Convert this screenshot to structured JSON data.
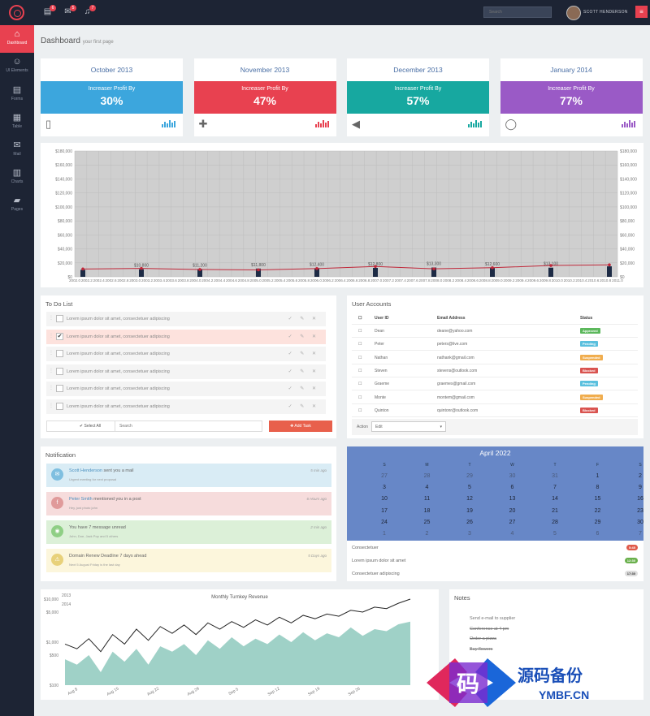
{
  "topbar": {
    "search_placeholder": "Search",
    "username": "SCOTT HENDERSON",
    "badges": [
      "6",
      "5",
      "7"
    ],
    "menu_glyph": "≡"
  },
  "sidebar": [
    {
      "label": "Dashboard",
      "icon": "home-icon",
      "glyph": "⌂",
      "active": true
    },
    {
      "label": "UI Elements",
      "icon": "smiley-icon",
      "glyph": "☺",
      "active": false
    },
    {
      "label": "Forms",
      "icon": "form-icon",
      "glyph": "▤",
      "active": false
    },
    {
      "label": "Table",
      "icon": "table-icon",
      "glyph": "▦",
      "active": false
    },
    {
      "label": "Mail",
      "icon": "mail-icon",
      "glyph": "✉",
      "active": false
    },
    {
      "label": "Charts",
      "icon": "chart-icon",
      "glyph": "▥",
      "active": false
    },
    {
      "label": "Pages",
      "icon": "folder-icon",
      "glyph": "▰",
      "active": false
    }
  ],
  "page": {
    "title": "Dashboard",
    "subtitle": "your first page"
  },
  "stats": [
    {
      "month": "October 2013",
      "label": "Increaser Profit By",
      "value": "30%",
      "color": "#3ca6dd",
      "icon": "tablet-icon",
      "glyph": "▯"
    },
    {
      "month": "November 2013",
      "label": "Increaser Profit By",
      "value": "47%",
      "color": "#e84150",
      "icon": "medkit-icon",
      "glyph": "✚"
    },
    {
      "month": "December 2013",
      "label": "Increaser Profit By",
      "value": "57%",
      "color": "#17a8a0",
      "icon": "speaker-icon",
      "glyph": "◀"
    },
    {
      "month": "January 2014",
      "label": "Increaser Profit By",
      "value": "77%",
      "color": "#9a5ac6",
      "icon": "comment-icon",
      "glyph": "◯"
    }
  ],
  "chart_data": [
    {
      "type": "bar",
      "series": [
        {
          "values": [
            10000,
            10800,
            11200,
            11800,
            12400,
            12800,
            13300,
            12600,
            13100,
            15000
          ]
        }
      ],
      "bar_labels": [
        "",
        "$10,800",
        "$11,200",
        "$11,800",
        "$12,400",
        "$12,800",
        "$13,300",
        "$12,600",
        "$13,100",
        ""
      ],
      "line": [
        11200,
        12000,
        10500,
        9900,
        11800,
        14800,
        11400,
        13000,
        16200,
        17200
      ],
      "y_ticks": [
        "$0",
        "$20,000",
        "$40,000",
        "$60,000",
        "$80,000",
        "$100,000",
        "$120,000",
        "$140,000",
        "$160,000",
        "$180,000"
      ],
      "y_tick_values": [
        0,
        20000,
        40000,
        60000,
        80000,
        100000,
        120000,
        140000,
        160000,
        180000
      ],
      "x_ticks": [
        "2002.0",
        "2002.2",
        "2002.4",
        "2002.6",
        "2002.8",
        "2003.0",
        "2003.2",
        "2003.4",
        "2003.6",
        "2003.8",
        "2004.0",
        "2004.2",
        "2004.4",
        "2004.6",
        "2004.8",
        "2005.0",
        "2005.2",
        "2005.4",
        "2005.6",
        "2005.8",
        "2006.0",
        "2006.2",
        "2006.4",
        "2006.6",
        "2006.8",
        "2007.0",
        "2007.2",
        "2007.4",
        "2007.6",
        "2007.8",
        "2008.0",
        "2008.2",
        "2008.4",
        "2008.6",
        "2008.8",
        "2009.0",
        "2009.2",
        "2009.4",
        "2009.6",
        "2009.8",
        "2010.0",
        "2010.2",
        "2010.4",
        "2010.6",
        "2010.8",
        "2011.0"
      ],
      "ylim": [
        0,
        180000
      ],
      "grid": true
    },
    {
      "type": "area",
      "title": "Monthly Turnkey Revenue",
      "legend": [
        "2013",
        "2014"
      ],
      "y_ticks": [
        "$100",
        "$500",
        "$1,000",
        "$5,000",
        "$10,000"
      ],
      "y_tick_values": [
        100,
        500,
        1000,
        5000,
        10000
      ],
      "y_scale": "log",
      "x_ticks": [
        "Aug 8",
        "Aug 15",
        "Aug 22",
        "Aug 29",
        "Sep 5",
        "Sep 12",
        "Sep 19",
        "Sep 26"
      ],
      "area_2013": [
        400,
        300,
        500,
        200,
        600,
        350,
        700,
        300,
        800,
        600,
        900,
        500,
        1100,
        700,
        1300,
        800,
        1200,
        900,
        1500,
        1000,
        1700,
        1100,
        1600,
        1300,
        2200,
        1400,
        2000,
        1800,
        2600,
        3000
      ],
      "line_2014": [
        900,
        700,
        1200,
        600,
        1500,
        900,
        2000,
        1100,
        2300,
        1600,
        2500,
        1500,
        2800,
        2000,
        3000,
        2200,
        3300,
        2500,
        3800,
        2800,
        4200,
        3500,
        4500,
        4000,
        5500,
        5000,
        6500,
        6000,
        8000,
        10000
      ]
    }
  ],
  "todo": {
    "title": "To Do List",
    "items": [
      {
        "text": "Lorem ipsum dolor sit amet, consectetuer adipiscing",
        "done": false
      },
      {
        "text": "Lorem ipsum dolor sit amet, consectetuer adipiscing",
        "done": true
      },
      {
        "text": "Lorem ipsum dolor sit amet, consectetuer adipiscing",
        "done": false
      },
      {
        "text": "Lorem ipsum dolor sit amet, consectetuer adipiscing",
        "done": false
      },
      {
        "text": "Lorem ipsum dolor sit amet, consectetuer adipiscing",
        "done": false
      },
      {
        "text": "Lorem ipsum dolor sit amet, consectetuer adipiscing",
        "done": false
      }
    ],
    "select_all": "Select All",
    "search_placeholder": "Search",
    "add_task": "Add Task",
    "actions": "✓ ✎ ✕"
  },
  "accounts": {
    "title": "User Accounts",
    "headers": [
      "User ID",
      "Email Address",
      "Status"
    ],
    "rows": [
      {
        "id": "Dean",
        "email": "deane@yahoo.com",
        "status": "Approved",
        "color": "#5cb85c"
      },
      {
        "id": "Peter",
        "email": "peters@live.com",
        "status": "Pending",
        "color": "#5bc0de"
      },
      {
        "id": "Nathan",
        "email": "nathank@gmail.com",
        "status": "Suspended",
        "color": "#f0ad4e"
      },
      {
        "id": "Steven",
        "email": "stevens@outlook.com",
        "status": "Blocked",
        "color": "#d9534f"
      },
      {
        "id": "Graeme",
        "email": "graemes@gmail.com",
        "status": "Pending",
        "color": "#5bc0de"
      },
      {
        "id": "Monte",
        "email": "montem@gmail.com",
        "status": "Suspended",
        "color": "#f0ad4e"
      },
      {
        "id": "Quinton",
        "email": "quintonr@outlook.com",
        "status": "Blocked",
        "color": "#d9534f"
      }
    ],
    "action_label": "Action",
    "action_value": "Edit"
  },
  "notifications": {
    "title": "Notification",
    "items": [
      {
        "who": "Scott Henderson",
        "msg": " sent you a mail",
        "sub": "Urgent meeting for next proposal",
        "time": "5 min ago",
        "bg": "#d9ecf5",
        "ic": "#7fbfe0",
        "icon": "mail-icon",
        "glyph": "✉"
      },
      {
        "who": "Peter Smith",
        "msg": " mentioned you in a post",
        "sub": "Hey, just photo john",
        "time": "6 Hours ago",
        "bg": "#f6dcdc",
        "ic": "#e09a9a",
        "icon": "facebook-icon",
        "glyph": "f"
      },
      {
        "who": "",
        "msg": "You have 7 message unread",
        "sub": "John, Doe, Jack Pop and 5 others",
        "time": "2 min ago",
        "bg": "#dcf0d8",
        "ic": "#8fcf85",
        "icon": "chat-icon",
        "glyph": "◉"
      },
      {
        "who": "",
        "msg": "Domain Renew Deadline 7 days ahead",
        "sub": "Next 5 August Friday is the last day",
        "time": "5 Days ago",
        "bg": "#fcf6dc",
        "ic": "#e8d17a",
        "icon": "alert-icon",
        "glyph": "⚠"
      }
    ]
  },
  "calendar": {
    "title": "April 2022",
    "headers": [
      "S",
      "M",
      "T",
      "W",
      "T",
      "F",
      "S"
    ],
    "weeks": [
      [
        "27",
        "28",
        "29",
        "30",
        "31",
        "1",
        "2"
      ],
      [
        "3",
        "4",
        "5",
        "6",
        "7",
        "8",
        "9"
      ],
      [
        "10",
        "11",
        "12",
        "13",
        "14",
        "15",
        "16"
      ],
      [
        "17",
        "18",
        "19",
        "20",
        "21",
        "22",
        "23"
      ],
      [
        "24",
        "25",
        "26",
        "27",
        "28",
        "29",
        "30"
      ],
      [
        "1",
        "2",
        "3",
        "4",
        "5",
        "6",
        "7"
      ]
    ],
    "tasks": [
      {
        "text": "Consectetuer",
        "badge": "5:45",
        "color": "#e05a4a"
      },
      {
        "text": "Lorem ipsum dolor sit amet",
        "badge": "12:30",
        "color": "#6ab04c"
      },
      {
        "text": "Consectetuer adipiscing",
        "badge": "17:30",
        "color": "#dddddd"
      }
    ]
  },
  "notes": {
    "title": "Notes",
    "items": [
      {
        "text": "Send e-mail to supplier",
        "done": false
      },
      {
        "text": "Conference at 4 pm",
        "done": true
      },
      {
        "text": "Order a pizza",
        "done": true
      },
      {
        "text": "Buy flowers",
        "done": true
      }
    ]
  },
  "watermark": {
    "glyph": "码",
    "title": "源码备份",
    "url": "YMBF.CN"
  }
}
